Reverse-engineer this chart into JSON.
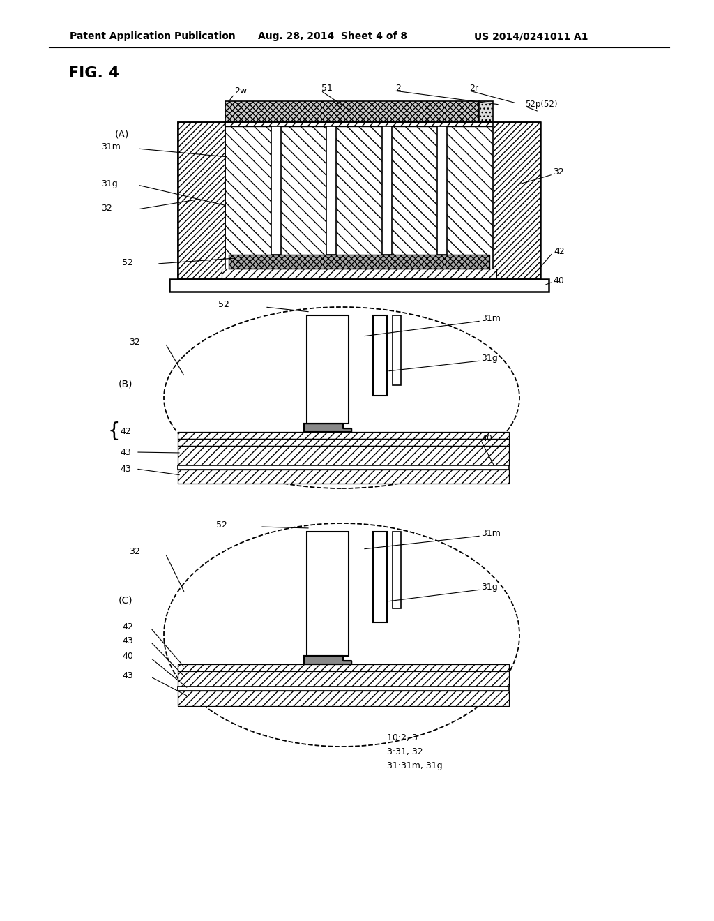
{
  "bg_color": "#ffffff",
  "header1": "Patent Application Publication",
  "header2": "Aug. 28, 2014  Sheet 4 of 8",
  "header3": "US 2014/0241011 A1",
  "fig_label": "FIG. 4"
}
